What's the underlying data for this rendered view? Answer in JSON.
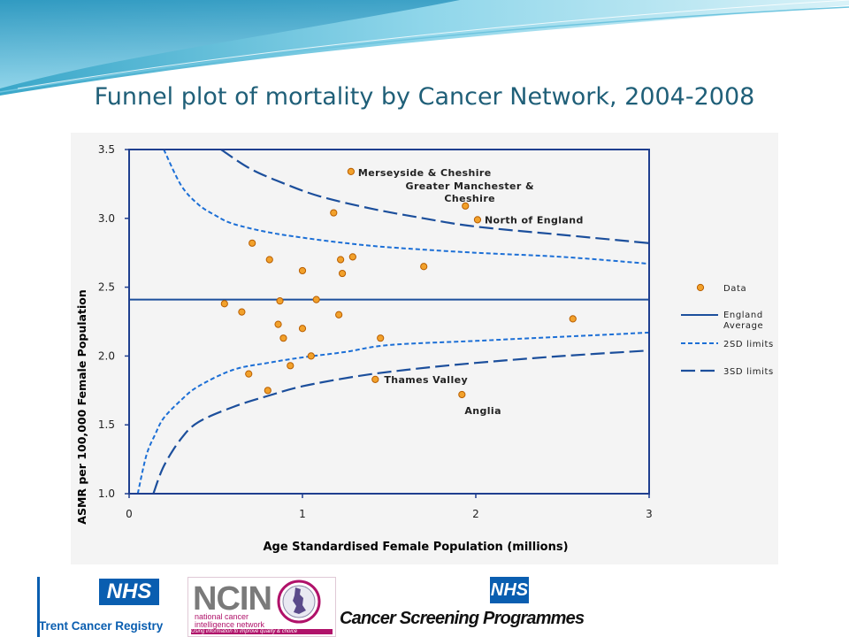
{
  "slide": {
    "title": "Funnel plot of mortality by Cancer Network, 2004-2008"
  },
  "colors": {
    "title": "#1f5f78",
    "axis": "#1f3f8f",
    "line": "#1c4f9c",
    "limits": "#1c6fd6",
    "point_fill": "#f2a12b",
    "point_stroke": "#b85e00"
  },
  "chart_data": {
    "type": "scatter",
    "title": "",
    "xlabel": "Age Standardised Female Population (millions)",
    "ylabel": "ASMR per 100,000 Female Population",
    "xlim": [
      0,
      3
    ],
    "ylim": [
      1.0,
      3.5
    ],
    "x_ticks": [
      "0",
      "1",
      "2",
      "3"
    ],
    "y_ticks": [
      "1.0",
      "1.5",
      "2.0",
      "2.5",
      "3.0",
      "3.5"
    ],
    "grid": false,
    "legend_position": "right",
    "legend": [
      "Data",
      "England Average",
      "2SD limits",
      "3SD limits"
    ],
    "england_average": 2.41,
    "series": [
      {
        "name": "Data",
        "points": [
          {
            "x": 1.28,
            "y": 3.34,
            "label": "Merseyside & Cheshire"
          },
          {
            "x": 1.94,
            "y": 3.09,
            "label": "Greater Manchester & Cheshire"
          },
          {
            "x": 2.01,
            "y": 2.99,
            "label": "North of England"
          },
          {
            "x": 1.18,
            "y": 3.04
          },
          {
            "x": 0.71,
            "y": 2.82
          },
          {
            "x": 0.81,
            "y": 2.7
          },
          {
            "x": 1.22,
            "y": 2.7
          },
          {
            "x": 1.29,
            "y": 2.72
          },
          {
            "x": 1.7,
            "y": 2.65
          },
          {
            "x": 1.0,
            "y": 2.62
          },
          {
            "x": 1.23,
            "y": 2.6
          },
          {
            "x": 1.08,
            "y": 2.41
          },
          {
            "x": 0.55,
            "y": 2.38
          },
          {
            "x": 0.87,
            "y": 2.4
          },
          {
            "x": 0.65,
            "y": 2.32
          },
          {
            "x": 1.21,
            "y": 2.3
          },
          {
            "x": 0.86,
            "y": 2.23
          },
          {
            "x": 1.0,
            "y": 2.2
          },
          {
            "x": 0.89,
            "y": 2.13
          },
          {
            "x": 1.45,
            "y": 2.13
          },
          {
            "x": 2.56,
            "y": 2.27
          },
          {
            "x": 1.05,
            "y": 2.0
          },
          {
            "x": 0.93,
            "y": 1.93
          },
          {
            "x": 0.69,
            "y": 1.87
          },
          {
            "x": 1.42,
            "y": 1.83,
            "label": "Thames Valley"
          },
          {
            "x": 0.8,
            "y": 1.75
          },
          {
            "x": 1.92,
            "y": 1.72,
            "label": "Anglia"
          }
        ]
      },
      {
        "name": "2SD limits",
        "upper": [
          [
            0.2,
            3.5
          ],
          [
            0.3,
            3.24
          ],
          [
            0.4,
            3.1
          ],
          [
            0.5,
            3.02
          ],
          [
            0.6,
            2.96
          ],
          [
            0.8,
            2.9
          ],
          [
            1.0,
            2.86
          ],
          [
            1.25,
            2.82
          ],
          [
            1.5,
            2.79
          ],
          [
            2.0,
            2.75
          ],
          [
            2.5,
            2.72
          ],
          [
            3.0,
            2.67
          ]
        ],
        "lower": [
          [
            0.05,
            1.0
          ],
          [
            0.1,
            1.28
          ],
          [
            0.15,
            1.43
          ],
          [
            0.2,
            1.55
          ],
          [
            0.3,
            1.68
          ],
          [
            0.4,
            1.78
          ],
          [
            0.6,
            1.9
          ],
          [
            0.8,
            1.95
          ],
          [
            1.0,
            1.99
          ],
          [
            1.25,
            2.03
          ],
          [
            1.5,
            2.08
          ],
          [
            2.0,
            2.11
          ],
          [
            2.5,
            2.14
          ],
          [
            3.0,
            2.17
          ]
        ]
      },
      {
        "name": "3SD limits",
        "upper": [
          [
            0.53,
            3.5
          ],
          [
            0.7,
            3.36
          ],
          [
            0.9,
            3.25
          ],
          [
            1.1,
            3.16
          ],
          [
            1.4,
            3.07
          ],
          [
            1.7,
            3.0
          ],
          [
            2.0,
            2.94
          ],
          [
            2.5,
            2.88
          ],
          [
            3.0,
            2.82
          ]
        ],
        "lower": [
          [
            0.14,
            1.0
          ],
          [
            0.2,
            1.2
          ],
          [
            0.3,
            1.4
          ],
          [
            0.4,
            1.52
          ],
          [
            0.6,
            1.63
          ],
          [
            0.8,
            1.71
          ],
          [
            1.0,
            1.78
          ],
          [
            1.3,
            1.85
          ],
          [
            1.6,
            1.9
          ],
          [
            2.0,
            1.95
          ],
          [
            2.5,
            2.0
          ],
          [
            3.0,
            2.04
          ]
        ]
      }
    ]
  },
  "logos": {
    "trent": {
      "badge": "NHS",
      "name": "Trent Cancer Registry"
    },
    "ncin": {
      "name": "NCIN",
      "sub1": "national cancer",
      "sub2": "intelligence network",
      "tagline": "Using information to improve quality & choice"
    },
    "csp": {
      "badge": "NHS",
      "name": "Cancer Screening Programmes"
    }
  }
}
